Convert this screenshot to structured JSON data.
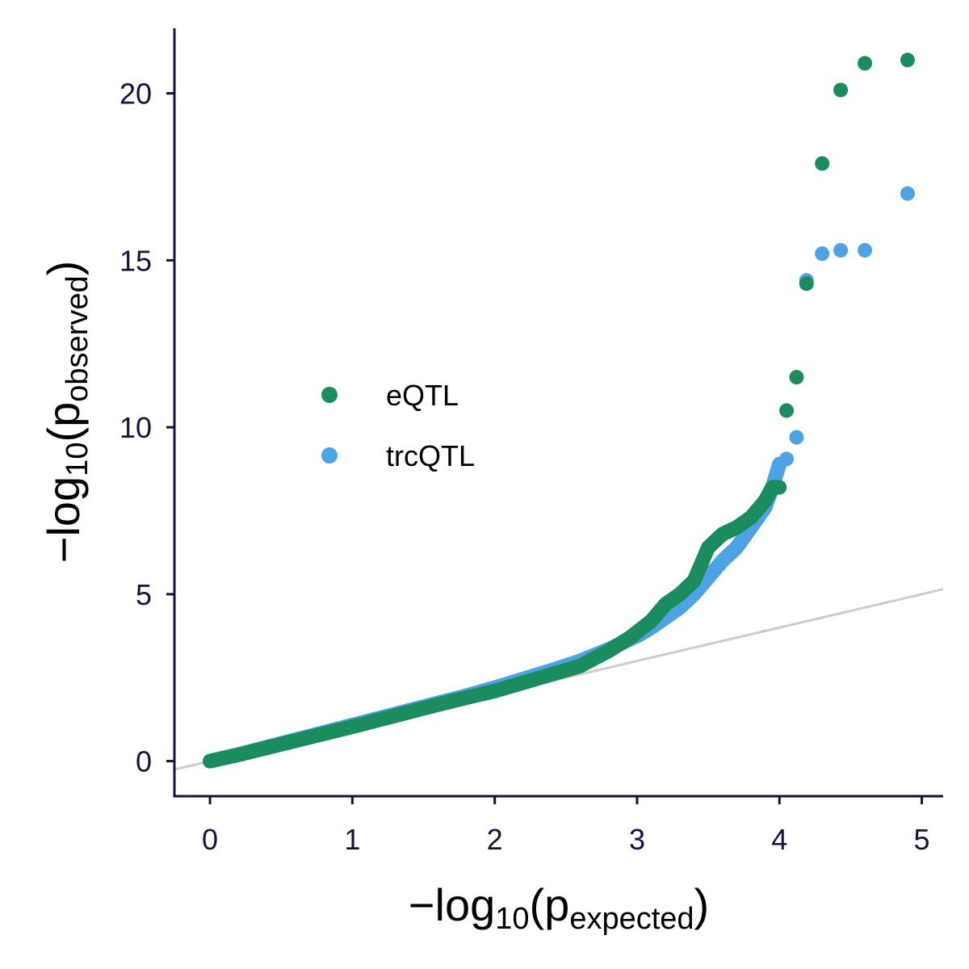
{
  "chart_data": {
    "type": "scatter",
    "title": "",
    "xlabel": {
      "prefix": "−log",
      "sub": "10",
      "open": "(p",
      "psub": "expected",
      "close": ")"
    },
    "ylabel": {
      "prefix": "−log",
      "sub": "10",
      "open": "(p",
      "psub": "observed",
      "close": ")"
    },
    "xlim": [
      -0.25,
      5.15
    ],
    "ylim": [
      -1.05,
      21.95
    ],
    "xticks": [
      0,
      1,
      2,
      3,
      4,
      5
    ],
    "yticks": [
      0,
      5,
      10,
      15,
      20
    ],
    "xtick_labels": [
      "0",
      "1",
      "2",
      "3",
      "4",
      "5"
    ],
    "ytick_labels": [
      "0",
      "5",
      "10",
      "15",
      "20"
    ],
    "grid": false,
    "legend_position": "center-left",
    "reference_line": {
      "slope": 1,
      "intercept": 0,
      "color": "#cccccc"
    },
    "series": [
      {
        "name": "trcQTL",
        "color": "#4da3e3",
        "points": [
          [
            0.0,
            0.0
          ],
          [
            0.2,
            0.2
          ],
          [
            0.4,
            0.42
          ],
          [
            0.6,
            0.64
          ],
          [
            0.8,
            0.86
          ],
          [
            1.0,
            1.08
          ],
          [
            1.2,
            1.3
          ],
          [
            1.4,
            1.52
          ],
          [
            1.6,
            1.74
          ],
          [
            1.8,
            1.96
          ],
          [
            2.0,
            2.2
          ],
          [
            2.2,
            2.46
          ],
          [
            2.4,
            2.72
          ],
          [
            2.6,
            3.0
          ],
          [
            2.8,
            3.35
          ],
          [
            3.0,
            3.75
          ],
          [
            3.1,
            4.0
          ],
          [
            3.2,
            4.3
          ],
          [
            3.3,
            4.6
          ],
          [
            3.4,
            5.0
          ],
          [
            3.5,
            5.5
          ],
          [
            3.6,
            6.0
          ],
          [
            3.7,
            6.4
          ],
          [
            3.8,
            7.0
          ],
          [
            3.9,
            7.6
          ],
          [
            3.95,
            8.2
          ],
          [
            4.0,
            8.9
          ],
          [
            4.05,
            9.05
          ],
          [
            4.12,
            9.7
          ],
          [
            4.19,
            14.4
          ],
          [
            4.3,
            15.2
          ],
          [
            4.43,
            15.3
          ],
          [
            4.6,
            15.3
          ],
          [
            4.9,
            17.0
          ]
        ]
      },
      {
        "name": "eQTL",
        "color": "#1a8c5e",
        "points": [
          [
            0.0,
            0.0
          ],
          [
            0.2,
            0.19
          ],
          [
            0.4,
            0.4
          ],
          [
            0.6,
            0.61
          ],
          [
            0.8,
            0.82
          ],
          [
            1.0,
            1.03
          ],
          [
            1.2,
            1.25
          ],
          [
            1.4,
            1.47
          ],
          [
            1.6,
            1.69
          ],
          [
            1.8,
            1.9
          ],
          [
            2.0,
            2.1
          ],
          [
            2.2,
            2.35
          ],
          [
            2.4,
            2.6
          ],
          [
            2.6,
            2.85
          ],
          [
            2.8,
            3.3
          ],
          [
            2.95,
            3.7
          ],
          [
            3.1,
            4.2
          ],
          [
            3.2,
            4.7
          ],
          [
            3.3,
            5.0
          ],
          [
            3.4,
            5.4
          ],
          [
            3.5,
            6.4
          ],
          [
            3.6,
            6.8
          ],
          [
            3.7,
            7.0
          ],
          [
            3.8,
            7.3
          ],
          [
            3.9,
            7.8
          ],
          [
            3.95,
            8.2
          ],
          [
            4.0,
            8.2
          ],
          [
            4.05,
            10.5
          ],
          [
            4.12,
            11.5
          ],
          [
            4.19,
            14.3
          ],
          [
            4.3,
            17.9
          ],
          [
            4.43,
            20.1
          ],
          [
            4.6,
            20.9
          ],
          [
            4.9,
            21.0
          ]
        ]
      }
    ],
    "legend_order": [
      "eQTL",
      "trcQTL"
    ]
  }
}
